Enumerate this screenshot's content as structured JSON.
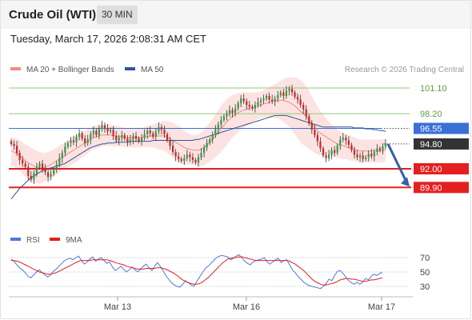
{
  "header": {
    "title": "Crude Oil (WTI)",
    "timeframe": "30 MIN",
    "datetime": "Tuesday, March 17, 2026 2:08:31 AM CET"
  },
  "colors": {
    "ma20_bollinger": "#f28b82",
    "ma50": "#2f5597",
    "bullish": "#2e9e44",
    "bearish": "#d42222",
    "resistance": "#8fc97a",
    "support": "#e31f1f",
    "pivot": "#3a6fd6",
    "last_price": "#333333",
    "rsi": "#4a7bd8",
    "rsi_ma": "#e31f1f",
    "arrow": "#3560a8"
  },
  "chart_data": [
    {
      "type": "candlestick",
      "legend": [
        {
          "name": "MA 20 + Bollinger Bands",
          "color": "#f28b82"
        },
        {
          "name": "MA 50",
          "color": "#2f5597"
        }
      ],
      "watermark": "Research © 2026 Trading Central",
      "x_ticks": [
        "Mar 13",
        "Mar 16",
        "Mar 17"
      ],
      "levels": [
        {
          "value": 101.1,
          "label": "101.10",
          "kind": "resistance"
        },
        {
          "value": 98.2,
          "label": "98.20",
          "kind": "resistance"
        },
        {
          "value": 96.55,
          "label": "96.55",
          "kind": "pivot"
        },
        {
          "value": 94.8,
          "label": "94.80",
          "kind": "last"
        },
        {
          "value": 92.0,
          "label": "92.00",
          "kind": "support"
        },
        {
          "value": 89.9,
          "label": "89.90",
          "kind": "support"
        }
      ],
      "projection": {
        "from": 94.8,
        "to": 89.9
      },
      "close": [
        94.8,
        94.6,
        93.8,
        93.0,
        92.6,
        92.2,
        91.2,
        90.8,
        91.5,
        92.2,
        92.6,
        92.0,
        91.6,
        91.1,
        91.4,
        92.0,
        92.5,
        93.2,
        93.8,
        94.5,
        94.9,
        95.2,
        95.0,
        95.6,
        96.0,
        95.4,
        94.9,
        95.3,
        95.9,
        96.3,
        95.8,
        96.5,
        96.9,
        96.6,
        96.2,
        96.4,
        95.7,
        95.2,
        95.5,
        95.8,
        95.4,
        95.0,
        95.3,
        95.7,
        95.4,
        95.1,
        95.5,
        95.9,
        96.3,
        96.0,
        95.6,
        96.2,
        96.7,
        96.4,
        95.9,
        95.2,
        94.6,
        93.9,
        93.4,
        93.1,
        92.9,
        93.2,
        93.6,
        93.3,
        93.0,
        92.7,
        93.3,
        93.8,
        94.4,
        94.9,
        95.3,
        95.8,
        96.4,
        97.0,
        97.5,
        97.9,
        98.2,
        98.6,
        98.3,
        98.8,
        99.4,
        99.9,
        99.6,
        99.2,
        99.0,
        98.8,
        99.2,
        99.5,
        99.7,
        99.9,
        100.2,
        99.8,
        99.6,
        99.9,
        100.3,
        100.6,
        100.2,
        100.8,
        101.0,
        100.6,
        100.1,
        99.8,
        99.2,
        98.7,
        97.9,
        97.1,
        96.4,
        95.8,
        95.1,
        94.3,
        93.5,
        93.2,
        93.6,
        94.1,
        93.8,
        94.6,
        95.3,
        95.5,
        95.2,
        94.7,
        94.1,
        93.6,
        93.3,
        93.5,
        93.1,
        93.3,
        93.7,
        93.4,
        93.9,
        94.3,
        94.1,
        94.5,
        94.8
      ],
      "ma20": [
        94.0,
        93.9,
        93.7,
        93.5,
        93.2,
        92.9,
        92.7,
        92.5,
        92.3,
        92.2,
        92.1,
        92.1,
        92.2,
        92.3,
        92.5,
        92.7,
        92.9,
        93.1,
        93.3,
        93.5,
        93.7,
        93.9,
        94.1,
        94.3,
        94.5,
        94.7,
        94.9,
        95.1,
        95.3,
        95.5,
        95.6,
        95.7,
        95.8,
        95.8,
        95.8,
        95.8,
        95.7,
        95.7,
        95.6,
        95.6,
        95.5,
        95.5,
        95.5,
        95.5,
        95.5,
        95.5,
        95.5,
        95.6,
        95.6,
        95.7,
        95.7,
        95.7,
        95.7,
        95.7,
        95.7,
        95.6,
        95.4,
        95.2,
        95.0,
        94.8,
        94.6,
        94.4,
        94.3,
        94.2,
        94.1,
        94.1,
        94.1,
        94.2,
        94.4,
        94.7,
        95.0,
        95.3,
        95.7,
        96.1,
        96.5,
        96.9,
        97.3,
        97.6,
        97.9,
        98.1,
        98.3,
        98.5,
        98.6,
        98.7,
        98.8,
        98.9,
        99.0,
        99.1,
        99.2,
        99.3,
        99.4,
        99.5,
        99.6,
        99.6,
        99.7,
        99.7,
        99.7,
        99.6,
        99.5,
        99.3,
        99.1,
        98.8,
        98.5,
        98.2,
        97.9,
        97.5,
        97.1,
        96.7,
        96.3,
        96.0,
        95.8,
        95.6,
        95.4,
        95.2,
        95.0,
        94.8,
        94.7,
        94.6,
        94.5,
        94.4,
        94.3,
        94.2,
        94.1,
        94.0,
        94.0,
        94.0,
        94.0,
        94.0,
        94.0,
        94.0,
        94.0,
        94.0,
        94.1
      ],
      "bb_width": [
        1.6,
        1.6,
        1.7,
        1.7,
        1.8,
        1.8,
        1.9,
        1.9,
        1.9,
        1.8,
        1.8,
        1.7,
        1.6,
        1.6,
        1.5,
        1.5,
        1.5,
        1.5,
        1.5,
        1.5,
        1.5,
        1.5,
        1.5,
        1.5,
        1.5,
        1.4,
        1.4,
        1.4,
        1.3,
        1.3,
        1.3,
        1.3,
        1.3,
        1.2,
        1.2,
        1.2,
        1.2,
        1.2,
        1.1,
        1.1,
        1.1,
        1.1,
        1.1,
        1.1,
        1.1,
        1.1,
        1.1,
        1.1,
        1.2,
        1.2,
        1.3,
        1.4,
        1.5,
        1.6,
        1.7,
        1.8,
        1.9,
        2.0,
        2.0,
        2.0,
        2.0,
        1.9,
        1.8,
        1.7,
        1.7,
        1.7,
        1.8,
        1.9,
        2.0,
        2.1,
        2.2,
        2.3,
        2.4,
        2.5,
        2.6,
        2.6,
        2.6,
        2.5,
        2.4,
        2.3,
        2.2,
        2.1,
        2.0,
        1.9,
        1.8,
        1.7,
        1.6,
        1.5,
        1.5,
        1.5,
        1.6,
        1.7,
        1.8,
        1.9,
        2.0,
        2.2,
        2.4,
        2.6,
        2.8,
        3.0,
        3.2,
        3.4,
        3.5,
        3.5,
        3.4,
        3.3,
        3.1,
        2.9,
        2.7,
        2.5,
        2.3,
        2.1,
        1.9,
        1.8,
        1.7,
        1.6,
        1.5,
        1.5,
        1.4,
        1.4,
        1.4,
        1.3,
        1.3,
        1.3,
        1.3,
        1.3,
        1.3,
        1.3,
        1.3,
        1.3,
        1.3,
        1.3,
        1.3
      ],
      "ma50": [
        88.6,
        89.0,
        89.4,
        89.8,
        90.1,
        90.4,
        90.7,
        91.0,
        91.2,
        91.4,
        91.6,
        91.8,
        91.9,
        92.0,
        92.1,
        92.2,
        92.3,
        92.4,
        92.5,
        92.6,
        92.8,
        93.0,
        93.2,
        93.4,
        93.6,
        93.8,
        94.0,
        94.2,
        94.4,
        94.5,
        94.6,
        94.7,
        94.8,
        94.8,
        94.9,
        94.9,
        94.9,
        95.0,
        95.0,
        95.0,
        95.0,
        95.0,
        95.1,
        95.1,
        95.1,
        95.1,
        95.1,
        95.1,
        95.1,
        95.1,
        95.2,
        95.2,
        95.2,
        95.2,
        95.2,
        95.2,
        95.2,
        95.2,
        95.2,
        95.2,
        95.2,
        95.2,
        95.2,
        95.2,
        95.2,
        95.3,
        95.3,
        95.4,
        95.5,
        95.6,
        95.7,
        95.8,
        95.9,
        96.0,
        96.1,
        96.2,
        96.3,
        96.4,
        96.5,
        96.6,
        96.7,
        96.8,
        96.9,
        97.0,
        97.1,
        97.2,
        97.3,
        97.4,
        97.5,
        97.6,
        97.7,
        97.8,
        97.9,
        98.0,
        98.0,
        98.0,
        98.0,
        98.0,
        97.9,
        97.8,
        97.7,
        97.6,
        97.5,
        97.4,
        97.3,
        97.2,
        97.1,
        97.0,
        96.9,
        96.8,
        96.7,
        96.7,
        96.7,
        96.7,
        96.7,
        96.7,
        96.7,
        96.7,
        96.7,
        96.7,
        96.7,
        96.6,
        96.6,
        96.6,
        96.6,
        96.5,
        96.5,
        96.5,
        96.4,
        96.4,
        96.3,
        96.3,
        96.2
      ]
    },
    {
      "type": "line",
      "legend": [
        {
          "name": "RSI",
          "color": "#4a7bd8"
        },
        {
          "name": "9MA",
          "color": "#e31f1f"
        }
      ],
      "y_ticks": [
        70,
        50,
        30
      ],
      "ylim": [
        20,
        80
      ],
      "rsi": [
        68,
        65,
        60,
        56,
        53,
        49,
        44,
        42,
        46,
        50,
        53,
        49,
        46,
        43,
        46,
        51,
        54,
        58,
        62,
        66,
        68,
        69,
        67,
        70,
        72,
        66,
        61,
        64,
        68,
        71,
        65,
        68,
        70,
        66,
        62,
        64,
        57,
        52,
        55,
        58,
        54,
        50,
        53,
        57,
        53,
        50,
        54,
        58,
        61,
        56,
        52,
        58,
        63,
        58,
        52,
        45,
        40,
        35,
        32,
        30,
        29,
        33,
        38,
        35,
        32,
        30,
        37,
        43,
        49,
        55,
        58,
        62,
        66,
        70,
        72,
        73,
        72,
        71,
        67,
        69,
        72,
        74,
        70,
        65,
        62,
        60,
        64,
        66,
        67,
        68,
        70,
        64,
        61,
        64,
        67,
        69,
        63,
        66,
        67,
        60,
        53,
        49,
        44,
        40,
        36,
        33,
        31,
        30,
        29,
        28,
        27,
        30,
        34,
        40,
        38,
        45,
        51,
        52,
        48,
        43,
        38,
        35,
        33,
        36,
        33,
        36,
        41,
        39,
        44,
        47,
        45,
        48,
        50
      ],
      "rsi_ma": [
        66,
        66,
        65,
        64,
        62,
        60,
        58,
        56,
        54,
        52,
        50,
        49,
        48,
        47,
        47,
        48,
        49,
        51,
        53,
        55,
        57,
        59,
        61,
        63,
        65,
        66,
        66,
        66,
        66,
        67,
        67,
        67,
        67,
        67,
        67,
        66,
        65,
        63,
        62,
        61,
        60,
        58,
        57,
        56,
        55,
        54,
        54,
        54,
        55,
        55,
        55,
        55,
        56,
        56,
        55,
        54,
        52,
        50,
        48,
        45,
        42,
        39,
        37,
        35,
        34,
        33,
        33,
        34,
        36,
        39,
        42,
        46,
        50,
        54,
        58,
        62,
        65,
        68,
        69,
        70,
        70,
        71,
        71,
        70,
        69,
        68,
        67,
        66,
        66,
        66,
        66,
        66,
        66,
        66,
        66,
        66,
        66,
        66,
        66,
        65,
        63,
        61,
        58,
        55,
        52,
        48,
        44,
        40,
        37,
        35,
        33,
        32,
        32,
        33,
        34,
        35,
        37,
        39,
        40,
        41,
        41,
        40,
        40,
        39,
        38,
        37,
        37,
        38,
        39,
        39,
        40,
        41,
        42
      ]
    }
  ]
}
